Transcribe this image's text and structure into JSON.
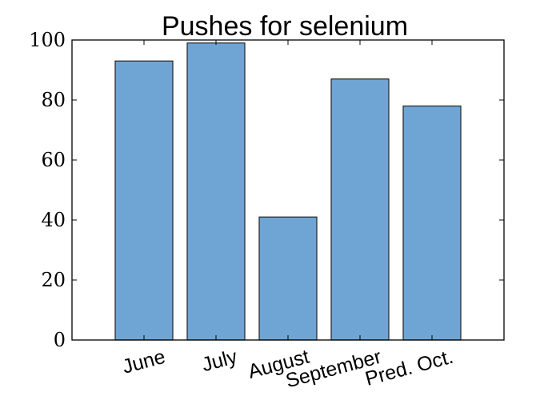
{
  "chart_data": {
    "type": "bar",
    "title": "Pushes for selenium",
    "xlabel": "",
    "ylabel": "",
    "categories": [
      "June",
      "July",
      "August",
      "September",
      "Pred. Oct."
    ],
    "values": [
      93,
      99,
      41,
      87,
      78
    ],
    "ylim": [
      0,
      100
    ],
    "yticks": [
      "0",
      "20",
      "40",
      "60",
      "80",
      "100"
    ],
    "grid": false,
    "bar_color": "#6fa5d5",
    "bar_edge_color": "#222222"
  }
}
